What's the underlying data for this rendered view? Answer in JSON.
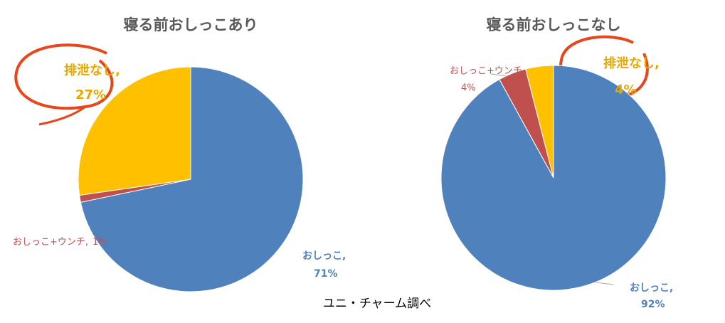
{
  "chart_data": [
    {
      "type": "pie",
      "title": "寝る前おしっこあり",
      "categories": [
        "おしっこ,",
        "おしっこ+ウンチ,",
        "排泄なし,"
      ],
      "values": [
        71,
        1,
        27
      ],
      "value_labels": [
        "71%",
        "1%",
        "27%"
      ],
      "colors": [
        "#4f81bd",
        "#c0504d",
        "#ffc000"
      ]
    },
    {
      "type": "pie",
      "title": "寝る前おしっこなし",
      "categories": [
        "おしっこ,",
        "おしっこ+ウンチ,",
        "排泄なし,"
      ],
      "values": [
        92,
        4,
        4
      ],
      "value_labels": [
        "92%",
        "4%",
        "4%"
      ],
      "colors": [
        "#4f81bd",
        "#c0504d",
        "#ffc000"
      ]
    }
  ],
  "source": "ユニ・チャーム調べ"
}
